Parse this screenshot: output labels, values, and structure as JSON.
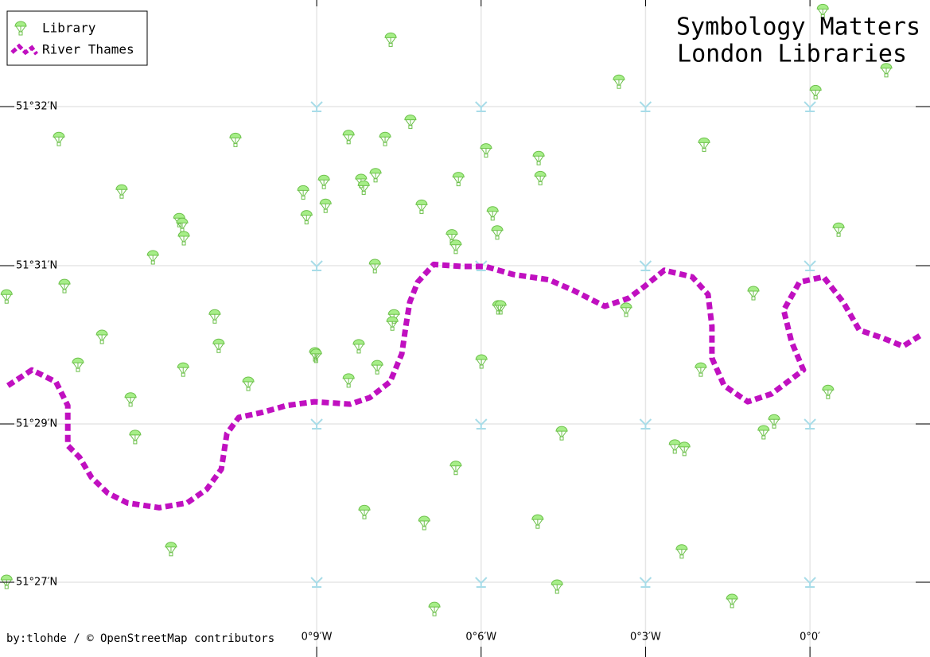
{
  "chart_data": {
    "type": "map",
    "title": "Symbology Matters",
    "subtitle": "London Libraries",
    "credit": "by:tlohde / © OpenStreetMap contributors",
    "xlim": [
      -0.2463,
      0.0365
    ],
    "ylim": [
      51.4343,
      51.5445
    ],
    "xticks": [
      {
        "value": -0.15,
        "label": "0°9′W"
      },
      {
        "value": -0.1,
        "label": "0°6′W"
      },
      {
        "value": -0.05,
        "label": "0°3′W"
      },
      {
        "value": 0,
        "label": "0°0′"
      }
    ],
    "yticks": [
      {
        "value": 51.533333,
        "label": "51°32′N"
      },
      {
        "value": 51.516667,
        "label": "51°31′N"
      },
      {
        "value": 51.483333,
        "label": "51°29′N"
      },
      {
        "value": 51.45,
        "label": "51°27′N"
      }
    ],
    "grid": true,
    "legend": "upper left",
    "series": [
      {
        "name": "Library",
        "color": "#a6ee88",
        "x": [
          0.0039,
          -0.1275,
          0.0232,
          -0.0581,
          0.0017,
          -0.2284,
          -0.1747,
          -0.1403,
          -0.1292,
          -0.1215,
          -0.0322,
          -0.0985,
          -0.0825,
          -0.2093,
          -0.1541,
          -0.1478,
          -0.1365,
          -0.1357,
          -0.1321,
          -0.1069,
          -0.082,
          -0.1918,
          -0.1909,
          -0.1904,
          -0.1531,
          -0.1473,
          -0.1181,
          -0.0965,
          -0.0951,
          0.0087,
          -0.1089,
          -0.1077,
          -0.1998,
          -0.1323,
          -0.2267,
          -0.0172,
          -0.0948,
          -0.0941,
          -0.0559,
          -0.1265,
          -0.127,
          -0.181,
          -0.2153,
          -0.1798,
          -0.1372,
          -0.1505,
          -0.1502,
          -0.2226,
          -0.1906,
          -0.1316,
          -0.0999,
          -0.0332,
          -0.1403,
          -0.1708,
          -0.2066,
          0.0055,
          -0.0109,
          -0.0141,
          -0.0755,
          -0.2052,
          -0.0411,
          -0.0382,
          -0.1077,
          -0.1355,
          -0.1173,
          -0.0828,
          -0.1943,
          -0.039,
          -0.0769,
          -0.0237,
          -0.1142,
          -0.2443,
          -0.2443
        ],
        "y": [
          51.5433,
          51.5403,
          51.5371,
          51.5359,
          51.5348,
          51.5299,
          51.5298,
          51.5301,
          51.5299,
          51.5317,
          51.5293,
          51.5287,
          51.5279,
          51.5244,
          51.5243,
          51.5254,
          51.5255,
          51.5248,
          51.5261,
          51.5257,
          51.5258,
          51.5214,
          51.5209,
          51.5195,
          51.5217,
          51.5229,
          51.5228,
          51.5221,
          51.5201,
          51.5204,
          51.5197,
          51.5186,
          51.5175,
          51.5165,
          51.5123,
          51.5108,
          51.5078,
          51.5078,
          51.5073,
          51.5059,
          51.5044,
          51.5059,
          51.5016,
          51.4997,
          51.4996,
          51.4979,
          51.4976,
          51.4957,
          51.4947,
          51.4952,
          51.4964,
          51.4947,
          51.4924,
          51.4917,
          51.4884,
          51.49,
          51.4838,
          51.4815,
          51.4813,
          51.4805,
          51.4785,
          51.478,
          51.474,
          51.4647,
          51.4624,
          51.4627,
          51.4569,
          51.4564,
          51.449,
          51.446,
          51.4443,
          51.5101,
          51.45
        ]
      },
      {
        "name": "River Thames",
        "color": "#c010c0",
        "x": [
          -0.2439,
          -0.2366,
          -0.2293,
          -0.2257,
          -0.2257,
          -0.2221,
          -0.2185,
          -0.2136,
          -0.2076,
          -0.1979,
          -0.1894,
          -0.1834,
          -0.179,
          -0.1773,
          -0.1737,
          -0.1664,
          -0.1592,
          -0.1507,
          -0.1398,
          -0.1338,
          -0.1277,
          -0.1241,
          -0.1229,
          -0.1217,
          -0.1193,
          -0.1144,
          -0.106,
          -0.0987,
          -0.0902,
          -0.0794,
          -0.0721,
          -0.0624,
          -0.0552,
          -0.0503,
          -0.0443,
          -0.0358,
          -0.031,
          -0.0298,
          -0.0298,
          -0.0261,
          -0.0189,
          -0.0116,
          -0.002,
          -0.0056,
          -0.008,
          -0.0032,
          0.0041,
          0.0101,
          0.015,
          0.0222,
          0.0283,
          0.0343
        ],
        "y": [
          51.4914,
          51.4947,
          51.4922,
          51.4872,
          51.4788,
          51.4763,
          51.4721,
          51.4688,
          51.4667,
          51.4657,
          51.4667,
          51.4696,
          51.4738,
          51.4813,
          51.4847,
          51.4858,
          51.4872,
          51.488,
          51.4875,
          51.4889,
          51.4922,
          51.4981,
          51.5039,
          51.509,
          51.5132,
          51.5168,
          51.5165,
          51.5165,
          51.5148,
          51.5137,
          51.5115,
          51.5081,
          51.5098,
          51.5123,
          51.5157,
          51.5143,
          51.5106,
          51.5039,
          51.4972,
          51.4914,
          51.488,
          51.4897,
          51.4947,
          51.5006,
          51.5073,
          51.5132,
          51.5143,
          51.509,
          51.5031,
          51.5014,
          51.4997,
          51.5023
        ]
      }
    ]
  }
}
